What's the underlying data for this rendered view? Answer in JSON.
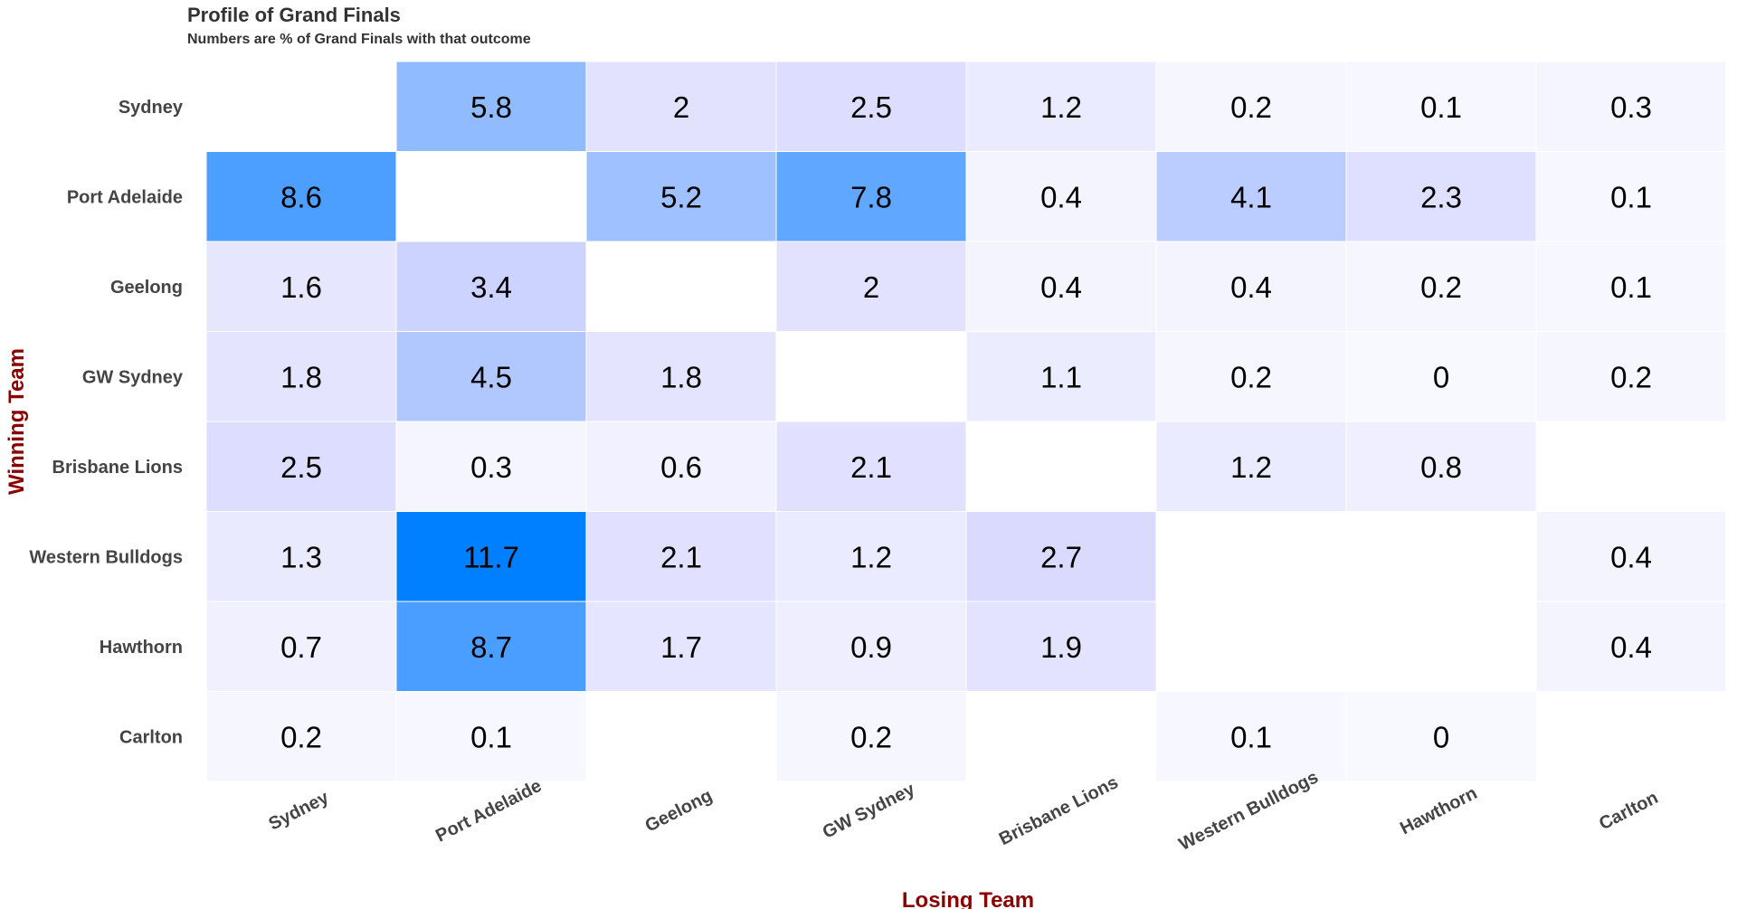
{
  "chart_data": {
    "type": "heatmap",
    "title": "Profile of Grand Finals",
    "subtitle": "Numbers are % of Grand Finals with that outcome",
    "xlabel": "Losing Team",
    "ylabel": "Winning Team",
    "x_categories": [
      "Sydney",
      "Port Adelaide",
      "Geelong",
      "GW Sydney",
      "Brisbane Lions",
      "Western Bulldogs",
      "Hawthorn",
      "Carlton"
    ],
    "y_categories": [
      "Sydney",
      "Port Adelaide",
      "Geelong",
      "GW Sydney",
      "Brisbane Lions",
      "Western Bulldogs",
      "Hawthorn",
      "Carlton"
    ],
    "values": [
      [
        null,
        5.8,
        2,
        2.5,
        1.2,
        0.2,
        0.1,
        0.3
      ],
      [
        8.6,
        null,
        5.2,
        7.8,
        0.4,
        4.1,
        2.3,
        0.1
      ],
      [
        1.6,
        3.4,
        null,
        2,
        0.4,
        0.4,
        0.2,
        0.1
      ],
      [
        1.8,
        4.5,
        1.8,
        null,
        1.1,
        0.2,
        0,
        0.2
      ],
      [
        2.5,
        0.3,
        0.6,
        2.1,
        null,
        1.2,
        0.8,
        null
      ],
      [
        1.3,
        11.7,
        2.1,
        1.2,
        2.7,
        null,
        null,
        0.4
      ],
      [
        0.7,
        8.7,
        1.7,
        0.9,
        1.9,
        null,
        null,
        0.4
      ],
      [
        0.2,
        0.1,
        null,
        0.2,
        null,
        0.1,
        0,
        null
      ]
    ],
    "color_low": "#f8f8ff",
    "color_mid": "#d8d8ff",
    "color_high": "#0080ff",
    "value_max": 11.7
  }
}
